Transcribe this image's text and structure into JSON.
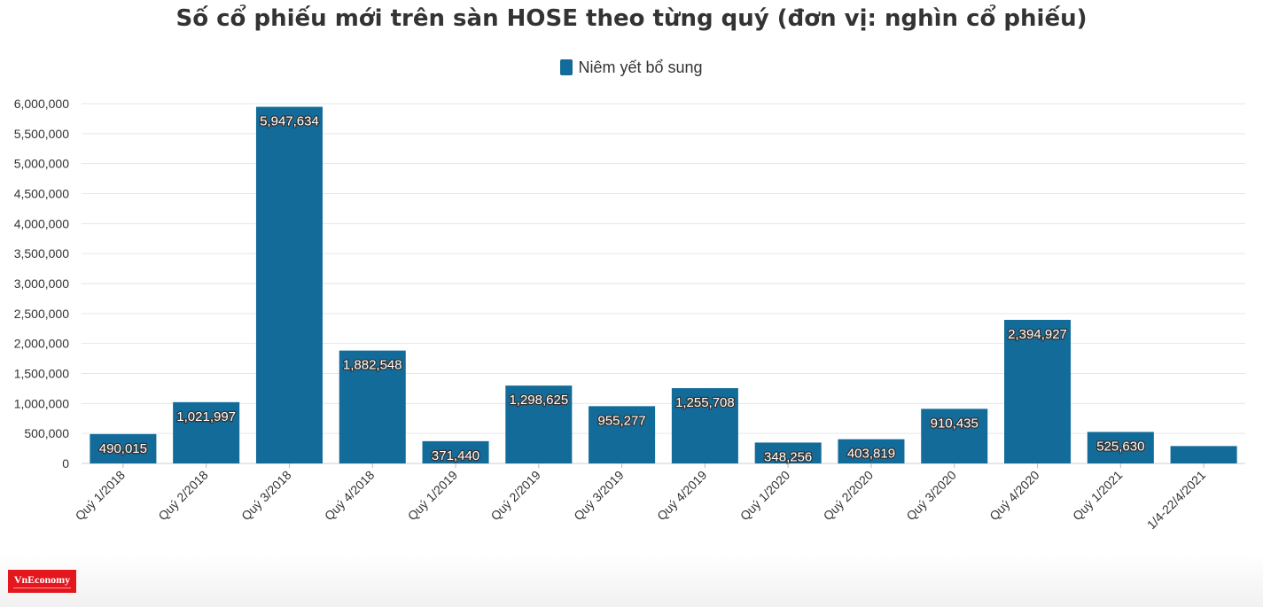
{
  "chart_data": {
    "type": "bar",
    "title": "Số cổ phiếu mới trên sàn HOSE theo từng quý (đơn vị: nghìn cổ phiếu)",
    "categories": [
      "Quý 1/2018",
      "Quý 2/2018",
      "Quý 3/2018",
      "Quý 4/2018",
      "Quý 1/2019",
      "Quý 2/2019",
      "Quý 3/2019",
      "Quý 4/2019",
      "Quý 1/2020",
      "Quý 2/2020",
      "Quý 3/2020",
      "Quý 4/2020",
      "Quý 1/2021",
      "1/4-22/4/2021"
    ],
    "series": [
      {
        "name": "Niêm yết bổ sung",
        "color": "#136b99",
        "values": [
          490015,
          1021997,
          5947634,
          1882548,
          371440,
          1298625,
          955277,
          1255708,
          348256,
          403819,
          910435,
          2394927,
          525630,
          290000
        ],
        "labels": [
          "490,015",
          "1,021,997",
          "5,947,634",
          "1,882,548",
          "371,440",
          "1,298,625",
          "955,277",
          "1,255,708",
          "348,256",
          "403,819",
          "910,435",
          "2,394,927",
          "525,630",
          ""
        ]
      }
    ],
    "ylim": [
      0,
      6000000
    ],
    "yticks": [
      0,
      500000,
      1000000,
      1500000,
      2000000,
      2500000,
      3000000,
      3500000,
      4000000,
      4500000,
      5000000,
      5500000,
      6000000
    ],
    "ytick_labels": [
      "0",
      "500,000",
      "1,000,000",
      "1,500,000",
      "2,000,000",
      "2,500,000",
      "3,000,000",
      "3,500,000",
      "4,000,000",
      "4,500,000",
      "5,000,000",
      "5,500,000",
      "6,000,000"
    ],
    "grid": true,
    "legend_position": "top-center"
  },
  "logo": {
    "text": "VnEconomy"
  }
}
